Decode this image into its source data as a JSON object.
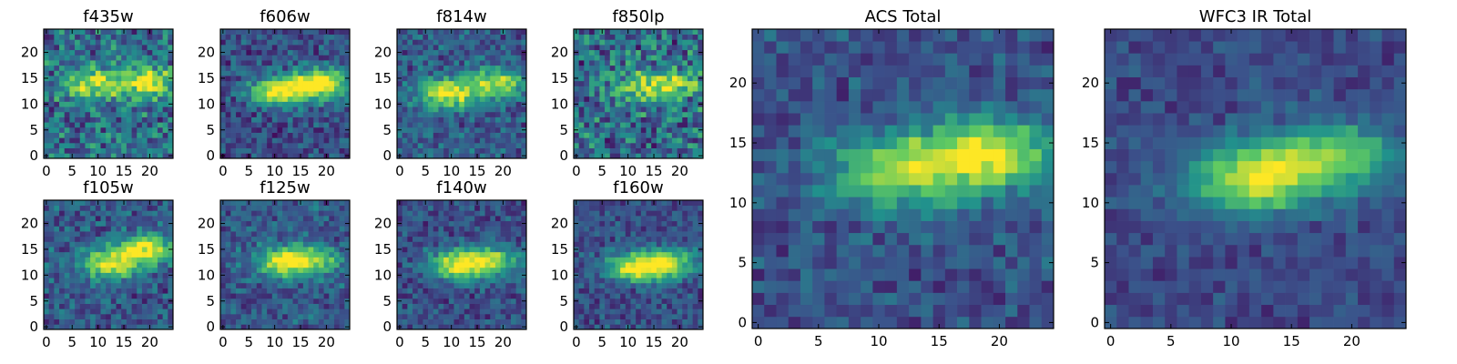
{
  "figure": {
    "colormap": "viridis",
    "colors": [
      "#440154",
      "#3b528b",
      "#21918c",
      "#5ec962",
      "#fde725"
    ]
  },
  "chart_data": [
    {
      "type": "heatmap",
      "title": "f435w",
      "size": [
        25,
        25
      ],
      "xlim": [
        0,
        24
      ],
      "ylim": [
        0,
        24
      ],
      "xticks": [
        "0",
        "5",
        "10",
        "15",
        "20"
      ],
      "yticks": [
        "0",
        "5",
        "10",
        "15",
        "20"
      ],
      "xlabel": "",
      "ylabel": "",
      "peaks": [
        [
          9,
          14,
          0.55
        ],
        [
          19,
          14.5,
          0.65
        ]
      ],
      "noise": 0.45,
      "base": 0.45
    },
    {
      "type": "heatmap",
      "title": "f606w",
      "size": [
        25,
        25
      ],
      "xlim": [
        0,
        24
      ],
      "ylim": [
        0,
        24
      ],
      "xticks": [
        "0",
        "5",
        "10",
        "15",
        "20"
      ],
      "yticks": [
        "0",
        "5",
        "10",
        "15",
        "20"
      ],
      "xlabel": "",
      "ylabel": "",
      "peaks": [
        [
          11,
          12.5,
          0.75
        ],
        [
          19,
          14,
          0.8
        ]
      ],
      "noise": 0.3,
      "base": 0.3
    },
    {
      "type": "heatmap",
      "title": "f814w",
      "size": [
        25,
        25
      ],
      "xlim": [
        0,
        24
      ],
      "ylim": [
        0,
        24
      ],
      "xticks": [
        "0",
        "5",
        "10",
        "15",
        "20"
      ],
      "yticks": [
        "0",
        "5",
        "10",
        "15",
        "20"
      ],
      "xlabel": "",
      "ylabel": "",
      "peaks": [
        [
          9,
          12,
          0.7
        ],
        [
          18.5,
          14,
          0.6
        ]
      ],
      "noise": 0.3,
      "base": 0.35
    },
    {
      "type": "heatmap",
      "title": "f850lp",
      "size": [
        25,
        25
      ],
      "xlim": [
        0,
        24
      ],
      "ylim": [
        0,
        24
      ],
      "xticks": [
        "0",
        "5",
        "10",
        "15",
        "20"
      ],
      "yticks": [
        "0",
        "5",
        "10",
        "15",
        "20"
      ],
      "xlabel": "",
      "ylabel": "",
      "peaks": [
        [
          12,
          13,
          0.4
        ],
        [
          19,
          14,
          0.45
        ]
      ],
      "noise": 0.5,
      "base": 0.45
    },
    {
      "type": "heatmap",
      "title": "f105w",
      "size": [
        25,
        25
      ],
      "xlim": [
        0,
        24
      ],
      "ylim": [
        0,
        24
      ],
      "xticks": [
        "0",
        "5",
        "10",
        "15",
        "20"
      ],
      "yticks": [
        "0",
        "5",
        "10",
        "15",
        "20"
      ],
      "xlabel": "",
      "ylabel": "",
      "peaks": [
        [
          12,
          12,
          0.65
        ],
        [
          19,
          15,
          0.7
        ]
      ],
      "noise": 0.3,
      "base": 0.35
    },
    {
      "type": "heatmap",
      "title": "f125w",
      "size": [
        25,
        25
      ],
      "xlim": [
        0,
        24
      ],
      "ylim": [
        0,
        24
      ],
      "xticks": [
        "0",
        "5",
        "10",
        "15",
        "20"
      ],
      "yticks": [
        "0",
        "5",
        "10",
        "15",
        "20"
      ],
      "xlabel": "",
      "ylabel": "",
      "peaks": [
        [
          12,
          12.5,
          0.65
        ],
        [
          18,
          13,
          0.4
        ]
      ],
      "noise": 0.28,
      "base": 0.35
    },
    {
      "type": "heatmap",
      "title": "f140w",
      "size": [
        25,
        25
      ],
      "xlim": [
        0,
        24
      ],
      "ylim": [
        0,
        24
      ],
      "xticks": [
        "0",
        "5",
        "10",
        "15",
        "20"
      ],
      "yticks": [
        "0",
        "5",
        "10",
        "15",
        "20"
      ],
      "xlabel": "",
      "ylabel": "",
      "peaks": [
        [
          11.5,
          12,
          0.7
        ],
        [
          18,
          13,
          0.5
        ]
      ],
      "noise": 0.25,
      "base": 0.3
    },
    {
      "type": "heatmap",
      "title": "f160w",
      "size": [
        25,
        25
      ],
      "xlim": [
        0,
        24
      ],
      "ylim": [
        0,
        24
      ],
      "xticks": [
        "0",
        "5",
        "10",
        "15",
        "20"
      ],
      "yticks": [
        "0",
        "5",
        "10",
        "15",
        "20"
      ],
      "xlabel": "",
      "ylabel": "",
      "peaks": [
        [
          11.5,
          11.5,
          0.72
        ],
        [
          18,
          12.5,
          0.55
        ]
      ],
      "noise": 0.25,
      "base": 0.3
    },
    {
      "type": "heatmap",
      "title": "ACS Total",
      "size": [
        25,
        25
      ],
      "xlim": [
        0,
        24
      ],
      "ylim": [
        0,
        24
      ],
      "xticks": [
        "0",
        "5",
        "10",
        "15",
        "20"
      ],
      "yticks": [
        "0",
        "5",
        "10",
        "15",
        "20"
      ],
      "xlabel": "",
      "ylabel": "",
      "peaks": [
        [
          11.5,
          12.5,
          0.6
        ],
        [
          19,
          14,
          0.7
        ]
      ],
      "noise": 0.22,
      "base": 0.32
    },
    {
      "type": "heatmap",
      "title": "WFC3 IR Total",
      "size": [
        25,
        25
      ],
      "xlim": [
        0,
        24
      ],
      "ylim": [
        0,
        24
      ],
      "xticks": [
        "0",
        "5",
        "10",
        "15",
        "20"
      ],
      "yticks": [
        "0",
        "5",
        "10",
        "15",
        "20"
      ],
      "xlabel": "",
      "ylabel": "",
      "peaks": [
        [
          12,
          12,
          0.68
        ],
        [
          18.5,
          14,
          0.5
        ]
      ],
      "noise": 0.14,
      "base": 0.28
    }
  ]
}
